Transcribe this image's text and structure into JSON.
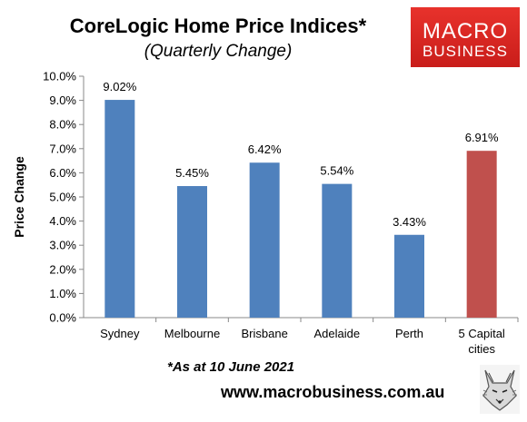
{
  "header": {
    "title": "CoreLogic Home Price Indices*",
    "subtitle": "(Quarterly Change)"
  },
  "logo": {
    "line1": "MACRO",
    "line2": "BUSINESS",
    "bg_color": "#d42a25"
  },
  "footer": {
    "note": "*As at 10 June 2021",
    "url": "www.macrobusiness.com.au",
    "mascot_icon": "fox-icon"
  },
  "chart_data": {
    "type": "bar",
    "title": "CoreLogic Home Price Indices*",
    "subtitle": "(Quarterly Change)",
    "xlabel": "",
    "ylabel": "Price Change",
    "categories": [
      "Sydney",
      "Melbourne",
      "Brisbane",
      "Adelaide",
      "Perth",
      "5 Capital cities"
    ],
    "values": [
      9.02,
      5.45,
      6.42,
      5.54,
      3.43,
      6.91
    ],
    "data_labels": [
      "9.02%",
      "5.45%",
      "6.42%",
      "5.54%",
      "3.43%",
      "6.91%"
    ],
    "bar_colors": [
      "#4f81bd",
      "#4f81bd",
      "#4f81bd",
      "#4f81bd",
      "#4f81bd",
      "#c0504d"
    ],
    "ylim": [
      0,
      10
    ],
    "yticks": [
      "0.0%",
      "1.0%",
      "2.0%",
      "3.0%",
      "4.0%",
      "5.0%",
      "6.0%",
      "7.0%",
      "8.0%",
      "9.0%",
      "10.0%"
    ],
    "grid": false,
    "legend": "none"
  }
}
